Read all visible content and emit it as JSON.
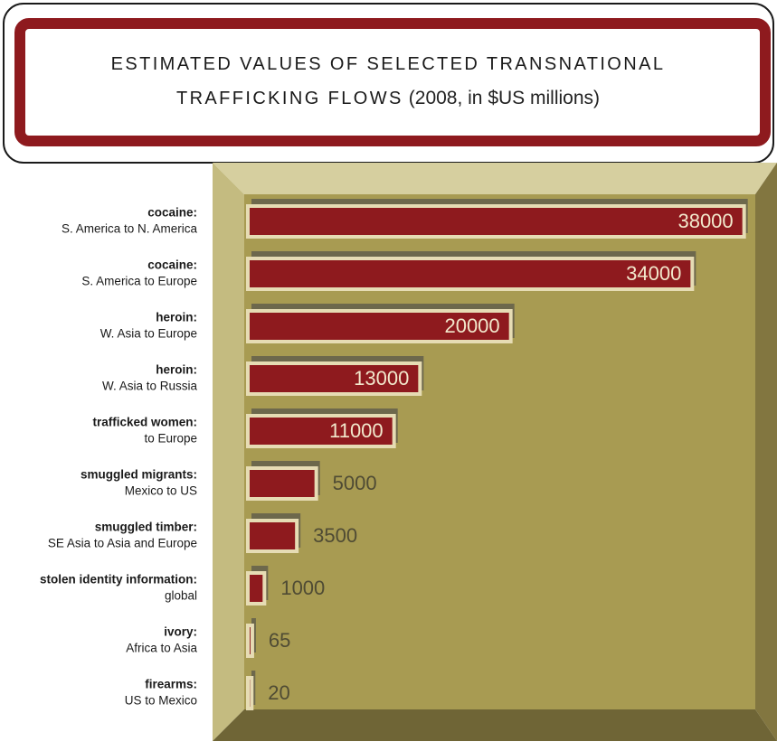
{
  "chart_data": {
    "type": "bar",
    "orientation": "horizontal",
    "title": "ESTIMATED VALUES OF SELECTED TRANSNATIONAL TRAFFICKING FLOWS",
    "subtitle": "(2008, in $US millions)",
    "categories": [
      "cocaine:",
      "cocaine:",
      "heroin:",
      "heroin:",
      "trafficked women:",
      "smuggled migrants:",
      "smuggled timber:",
      "stolen identity information:",
      "ivory:",
      "firearms:"
    ],
    "subcategories": [
      "S. America to N. America",
      "S. America to Europe",
      "W. Asia to Europe",
      "W. Asia to Russia",
      "to Europe",
      "Mexico to US",
      "SE Asia to Asia and Europe",
      "global",
      "Africa to Asia",
      "US to Mexico"
    ],
    "values": [
      38000,
      34000,
      20000,
      13000,
      11000,
      5000,
      3500,
      1000,
      65,
      20
    ],
    "color": "#8e1a1e",
    "xlim": [
      0,
      39000
    ]
  }
}
